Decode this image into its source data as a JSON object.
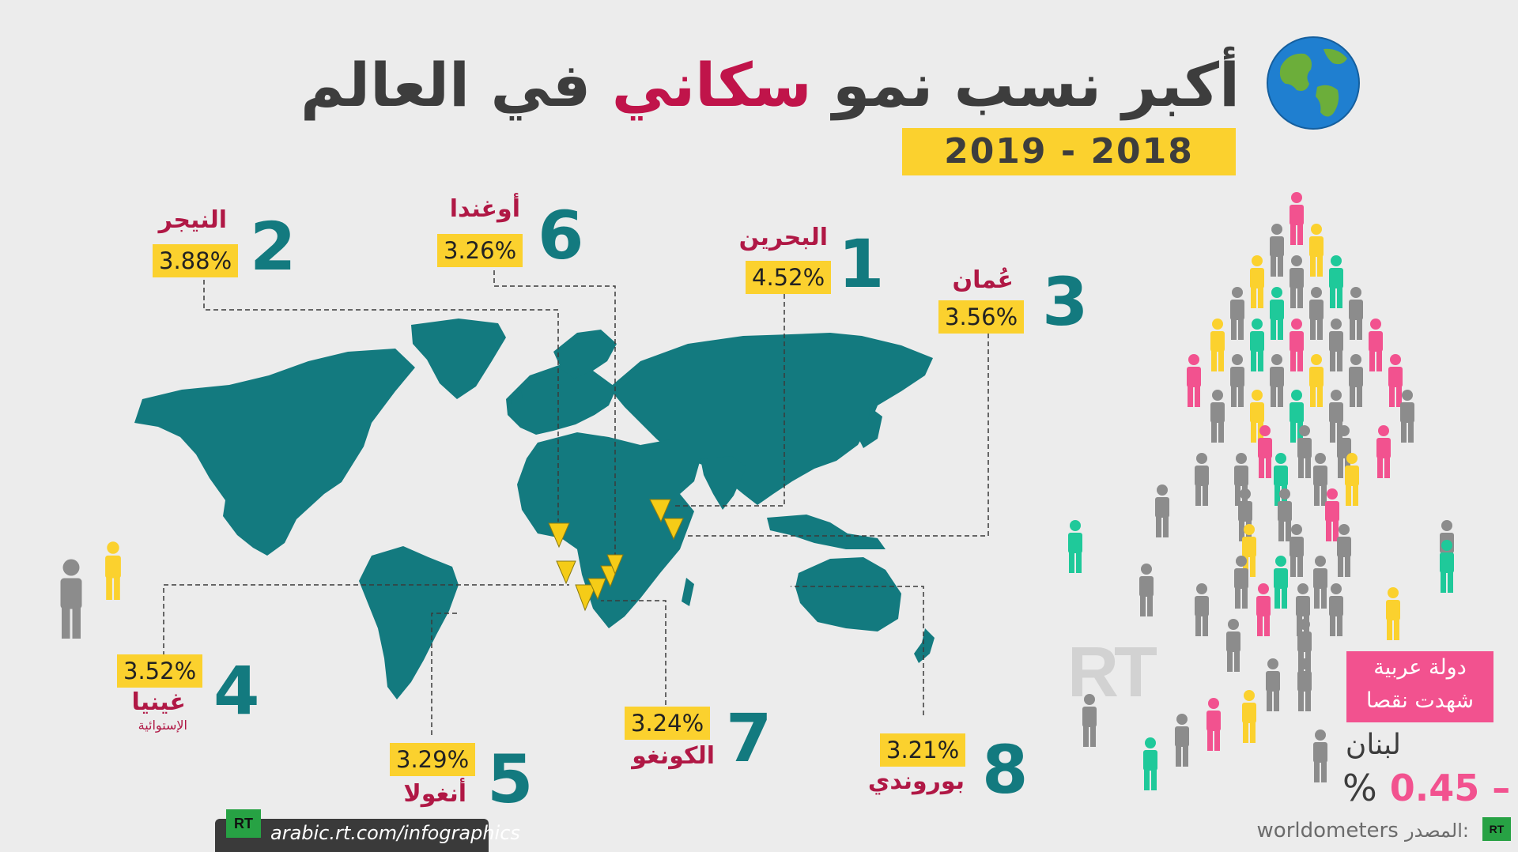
{
  "title": {
    "part1": "أكبر نسب نمو",
    "highlight": "سكاني",
    "part2": "في العالم"
  },
  "years": "2019 - 2018",
  "countries": [
    {
      "rank": "1",
      "name": "البحرين",
      "sub": "",
      "pct": "4.52%",
      "pct_value": 4.52
    },
    {
      "rank": "2",
      "name": "النيجر",
      "sub": "",
      "pct": "3.88%",
      "pct_value": 3.88
    },
    {
      "rank": "3",
      "name": "عُمان",
      "sub": "",
      "pct": "3.56%",
      "pct_value": 3.56
    },
    {
      "rank": "4",
      "name": "غينيا",
      "sub": "الإستوائية",
      "pct": "3.52%",
      "pct_value": 3.52
    },
    {
      "rank": "5",
      "name": "أنغولا",
      "sub": "",
      "pct": "3.29%",
      "pct_value": 3.29
    },
    {
      "rank": "6",
      "name": "أوغندا",
      "sub": "",
      "pct": "3.26%",
      "pct_value": 3.26
    },
    {
      "rank": "7",
      "name": "الكونغو",
      "sub": "",
      "pct": "3.24%",
      "pct_value": 3.24
    },
    {
      "rank": "8",
      "name": "بوروندي",
      "sub": "",
      "pct": "3.21%",
      "pct_value": 3.21
    }
  ],
  "decline": {
    "box": "دولة عربية شهدت نقصا",
    "country": "لبنان",
    "value": "0.45",
    "sign": "–",
    "percent": "%"
  },
  "source": {
    "label": "المصدر:",
    "value": "worldometers"
  },
  "footer": {
    "url": "arabic.rt.com/infographics",
    "logo": "RT"
  },
  "watermark": "RT",
  "colors": {
    "map": "#137a7f",
    "accent": "#fbd12e",
    "red": "#c0144a",
    "pink": "#f2528f",
    "green": "#1fc99a",
    "gray": "#8c8c8c"
  },
  "icons": [
    "globe-icon",
    "person-icon",
    "marker-icon",
    "rt-logo"
  ]
}
